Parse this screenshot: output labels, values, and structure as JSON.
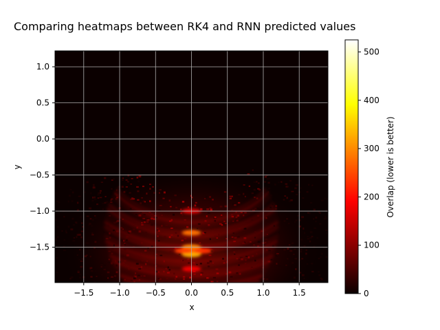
{
  "chart_data": {
    "type": "heatmap",
    "title": "Comparing heatmaps between RK4 and RNN predicted values",
    "xlabel": "x",
    "ylabel": "y",
    "xlim": [
      -1.9,
      1.9
    ],
    "ylim": [
      -1.99,
      1.22
    ],
    "x_ticks": [
      -1.5,
      -1.0,
      -0.5,
      0.0,
      0.5,
      1.0,
      1.5
    ],
    "x_tick_labels": [
      "−1.5",
      "−1.0",
      "−0.5",
      "0.0",
      "0.5",
      "1.0",
      "1.5"
    ],
    "y_ticks": [
      1.0,
      0.5,
      0.0,
      -0.5,
      -1.0,
      -1.5
    ],
    "y_tick_labels": [
      "1.0",
      "0.5",
      "0.0",
      "−0.5",
      "−1.0",
      "−1.5"
    ],
    "grid": true,
    "colormap": "hot",
    "colorbar": {
      "label": "Overlap (lower is better)",
      "range": [
        0,
        525
      ],
      "ticks": [
        0,
        100,
        200,
        300,
        400,
        500
      ],
      "tick_labels": [
        "0",
        "100",
        "200",
        "300",
        "400",
        "500"
      ]
    },
    "hot_region": {
      "center_x": 0.0,
      "peak_y": -1.6,
      "description": "intensity concentrated in arcs around y ≈ -1.0 to -1.95, strongest near x ≈ 0"
    },
    "hot_spots": [
      {
        "x": 0.0,
        "y": -1.0,
        "value": 160
      },
      {
        "x": 0.0,
        "y": -1.3,
        "value": 280
      },
      {
        "x": 0.0,
        "y": -1.5,
        "value": 300
      },
      {
        "x": 0.0,
        "y": -1.6,
        "value": 330
      },
      {
        "x": -0.1,
        "y": -1.55,
        "value": 240
      },
      {
        "x": 0.15,
        "y": -1.55,
        "value": 230
      },
      {
        "x": 0.0,
        "y": -1.8,
        "value": 180
      }
    ]
  },
  "colors": {
    "background": "#ffffff",
    "grid": "#b0b0b0",
    "map_base": "#0b0000"
  }
}
